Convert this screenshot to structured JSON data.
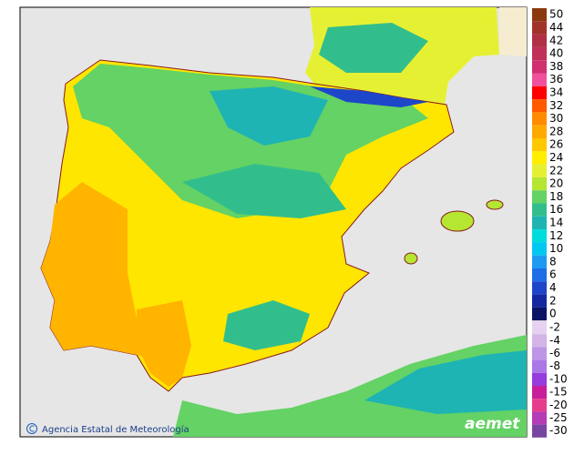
{
  "legend": [
    {
      "label": 50,
      "color": "#8b3a0f"
    },
    {
      "label": 44,
      "color": "#a0342a"
    },
    {
      "label": 42,
      "color": "#b03046"
    },
    {
      "label": 40,
      "color": "#c03058"
    },
    {
      "label": 38,
      "color": "#d03070"
    },
    {
      "label": 36,
      "color": "#f0509c"
    },
    {
      "label": 34,
      "color": "#ff0000"
    },
    {
      "label": 32,
      "color": "#ff5a00"
    },
    {
      "label": 30,
      "color": "#ff8c00"
    },
    {
      "label": 28,
      "color": "#ffaa00"
    },
    {
      "label": 26,
      "color": "#ffc800"
    },
    {
      "label": 24,
      "color": "#ffee00"
    },
    {
      "label": 22,
      "color": "#e6f032"
    },
    {
      "label": 20,
      "color": "#b4e632"
    },
    {
      "label": 18,
      "color": "#64d264"
    },
    {
      "label": 16,
      "color": "#32be8c"
    },
    {
      "label": 14,
      "color": "#1eb4b4"
    },
    {
      "label": 12,
      "color": "#00dcdc"
    },
    {
      "label": 10,
      "color": "#00c8f0"
    },
    {
      "label": 8,
      "color": "#1e9bf0"
    },
    {
      "label": 6,
      "color": "#1e6ee6"
    },
    {
      "label": 4,
      "color": "#1e46c8"
    },
    {
      "label": 2,
      "color": "#1428a0"
    },
    {
      "label": 0,
      "color": "#0a1464"
    }
  ],
  "legend_negative": [
    {
      "label": -2,
      "color": "#e6d2f0"
    },
    {
      "label": -4,
      "color": "#d2b4e6"
    },
    {
      "label": -6,
      "color": "#be96e6"
    },
    {
      "label": -8,
      "color": "#aa78e6"
    },
    {
      "label": -10,
      "color": "#963cdc"
    },
    {
      "label": -15,
      "color": "#c81e9b"
    },
    {
      "label": -20,
      "color": "#e63c8c"
    },
    {
      "label": -25,
      "color": "#b43cb4"
    },
    {
      "label": -30,
      "color": "#7846a0"
    }
  ],
  "footer": {
    "credit": "Agencia Estatal de Meteorología",
    "logo": "aemet"
  }
}
